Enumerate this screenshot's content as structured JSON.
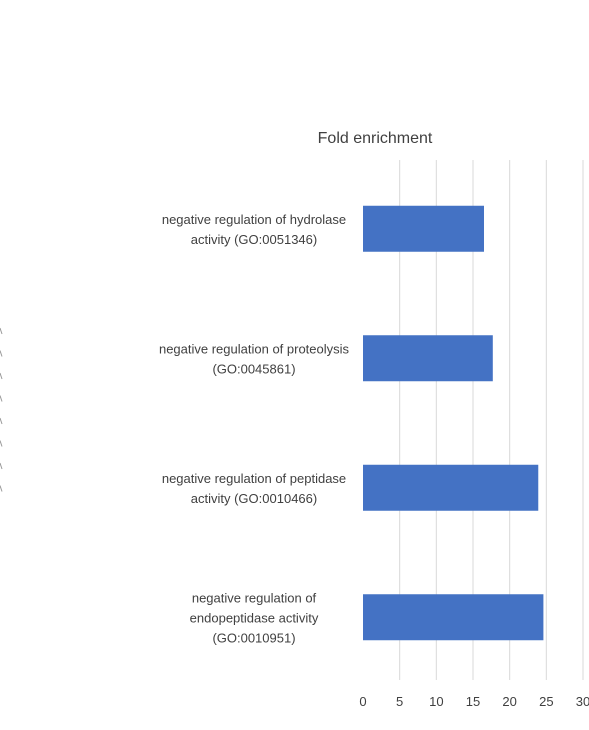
{
  "chart_data": {
    "type": "bar",
    "orientation": "horizontal",
    "title": "Fold enrichment",
    "xlabel": "",
    "ylabel": "",
    "categories": [
      "negative regulation of hydrolase activity (GO:0051346)",
      "negative regulation of proteolysis (GO:0045861)",
      "negative regulation of peptidase activity (GO:0010466)",
      "negative regulation of endopeptidase activity (GO:0010951)"
    ],
    "category_lines": [
      [
        "negative regulation of hydrolase",
        "activity (GO:0051346)"
      ],
      [
        "negative regulation of proteolysis",
        "(GO:0045861)"
      ],
      [
        "negative regulation of peptidase",
        "activity (GO:0010466)"
      ],
      [
        "negative regulation of",
        "endopeptidase activity",
        "(GO:0010951)"
      ]
    ],
    "values": [
      16.5,
      17.7,
      23.9,
      24.6
    ],
    "xlim": [
      0,
      30
    ],
    "xticks": [
      0,
      5,
      10,
      15,
      20,
      25,
      30
    ],
    "grid": true,
    "legend": "none",
    "bar_color": "#4472c4",
    "grid_color": "#d9d9d9"
  }
}
